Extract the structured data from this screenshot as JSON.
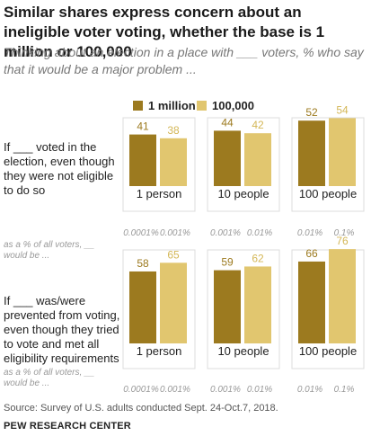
{
  "title": "Similar shares express concern about an ineligible voter voting, whether the base is 1 million or 100,000",
  "subtitle": "Thinking about an election in a place with ___ voters, % who say that it would be a major problem ...",
  "legend": [
    {
      "label": "1 million",
      "color": "#9c7a1f"
    },
    {
      "label": "100,000",
      "color": "#e1c66f"
    }
  ],
  "source": "Source: Survey of U.S. adults conducted Sept. 24-Oct.7, 2018.",
  "org": "PEW RESEARCH CENTER",
  "chart_data": {
    "type": "bar",
    "categories": [
      "1 person",
      "10 people",
      "100 people"
    ],
    "series_names": [
      "1 million",
      "100,000"
    ],
    "colors": [
      "#9c7a1f",
      "#e1c66f"
    ],
    "label_colors": [
      "#9c7a1f",
      "#d4b757"
    ],
    "ylim": [
      0,
      100
    ],
    "rows": [
      {
        "label": "If ___ voted in the election, even though they were not eligible to do so",
        "note": "as a % of all voters, __ would be ...",
        "values": [
          [
            41,
            38
          ],
          [
            44,
            42
          ],
          [
            52,
            54
          ]
        ],
        "pcts": [
          [
            "0.0001%",
            "0.001%"
          ],
          [
            "0.001%",
            "0.01%"
          ],
          [
            "0.01%",
            "0.1%"
          ]
        ]
      },
      {
        "label": "If ___ was/were prevented from voting, even though they tried to vote and met all eligibility requirements",
        "note": "as a % of all voters, __ would be ...",
        "values": [
          [
            58,
            65
          ],
          [
            59,
            62
          ],
          [
            66,
            76
          ]
        ],
        "pcts": [
          [
            "0.0001%",
            "0.001%"
          ],
          [
            "0.001%",
            "0.01%"
          ],
          [
            "0.01%",
            "0.1%"
          ]
        ]
      }
    ]
  }
}
